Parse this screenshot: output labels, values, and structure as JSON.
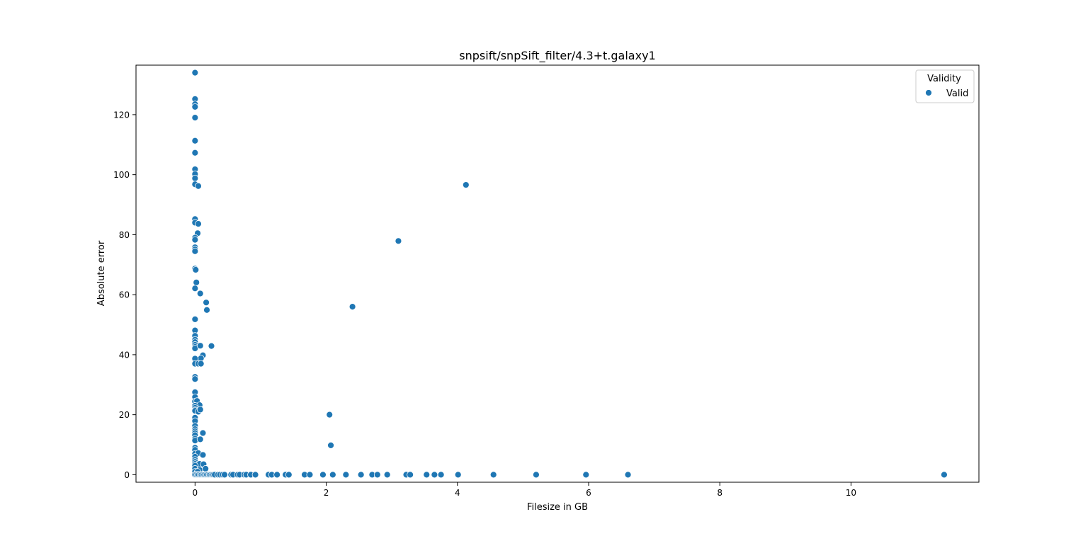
{
  "chart_data": {
    "type": "scatter",
    "title": "snpsift/snpSift_filter/4.3+t.galaxy1",
    "xlabel": "Filesize in GB",
    "ylabel": "Absolute error",
    "xlim": [
      -0.9,
      11.95
    ],
    "ylim": [
      -2.5,
      136.5
    ],
    "xticks": [
      0,
      2,
      4,
      6,
      8,
      10
    ],
    "yticks": [
      0,
      20,
      40,
      60,
      80,
      100,
      120
    ],
    "grid": false,
    "legend": {
      "title": "Validity",
      "placement": "top-right",
      "entries": [
        "Valid"
      ]
    },
    "series": [
      {
        "name": "Valid",
        "color": "#1f77b4",
        "points": [
          [
            0.0,
            134.0
          ],
          [
            0.0,
            125.2
          ],
          [
            0.0,
            123.5
          ],
          [
            0.0,
            122.6
          ],
          [
            0.0,
            119.0
          ],
          [
            0.0,
            111.3
          ],
          [
            0.0,
            107.3
          ],
          [
            0.0,
            101.8
          ],
          [
            0.0,
            100.2
          ],
          [
            0.0,
            98.8
          ],
          [
            0.0,
            96.8
          ],
          [
            0.05,
            96.2
          ],
          [
            0.0,
            85.2
          ],
          [
            0.0,
            84.0
          ],
          [
            0.05,
            83.6
          ],
          [
            0.04,
            80.5
          ],
          [
            0.0,
            79.0
          ],
          [
            0.0,
            78.3
          ],
          [
            0.0,
            75.8
          ],
          [
            0.0,
            75.1
          ],
          [
            0.0,
            74.5
          ],
          [
            0.0,
            68.7
          ],
          [
            0.01,
            68.3
          ],
          [
            0.02,
            64.1
          ],
          [
            0.0,
            62.1
          ],
          [
            0.08,
            60.4
          ],
          [
            0.17,
            57.4
          ],
          [
            0.18,
            54.9
          ],
          [
            0.0,
            51.8
          ],
          [
            0.0,
            48.1
          ],
          [
            0.0,
            46.3
          ],
          [
            0.0,
            45.0
          ],
          [
            0.0,
            44.2
          ],
          [
            0.0,
            43.3
          ],
          [
            0.0,
            42.6
          ],
          [
            0.0,
            42.1
          ],
          [
            0.08,
            43.0
          ],
          [
            0.25,
            42.9
          ],
          [
            0.12,
            39.8
          ],
          [
            0.09,
            38.8
          ],
          [
            0.0,
            38.7
          ],
          [
            0.0,
            37.0
          ],
          [
            0.05,
            37.0
          ],
          [
            0.09,
            37.0
          ],
          [
            0.0,
            32.6
          ],
          [
            0.0,
            31.9
          ],
          [
            0.0,
            27.5
          ],
          [
            0.0,
            25.9
          ],
          [
            0.0,
            24.4
          ],
          [
            0.03,
            24.6
          ],
          [
            0.07,
            23.2
          ],
          [
            0.0,
            23.0
          ],
          [
            0.0,
            22.3
          ],
          [
            0.0,
            21.6
          ],
          [
            0.0,
            21.3
          ],
          [
            0.05,
            21.0
          ],
          [
            0.08,
            21.7
          ],
          [
            0.0,
            19.0
          ],
          [
            0.0,
            17.9
          ],
          [
            0.0,
            16.3
          ],
          [
            0.0,
            15.2
          ],
          [
            0.0,
            14.5
          ],
          [
            0.0,
            13.9
          ],
          [
            0.0,
            13.2
          ],
          [
            0.12,
            13.9
          ],
          [
            0.0,
            12.0
          ],
          [
            0.0,
            11.4
          ],
          [
            0.08,
            11.8
          ],
          [
            0.0,
            9.0
          ],
          [
            0.0,
            8.3
          ],
          [
            0.0,
            7.0
          ],
          [
            0.05,
            7.2
          ],
          [
            0.12,
            6.6
          ],
          [
            0.0,
            6.0
          ],
          [
            0.0,
            5.0
          ],
          [
            0.0,
            4.3
          ],
          [
            0.0,
            3.6
          ],
          [
            0.07,
            3.6
          ],
          [
            0.13,
            3.5
          ],
          [
            0.0,
            3.0
          ],
          [
            0.0,
            2.0
          ],
          [
            0.07,
            1.6
          ],
          [
            0.16,
            2.0
          ],
          [
            0.0,
            1.0
          ],
          [
            0.04,
            1.0
          ],
          [
            0.0,
            0.0
          ],
          [
            0.02,
            0.0
          ],
          [
            0.04,
            0.0
          ],
          [
            0.06,
            0.0
          ],
          [
            0.08,
            0.0
          ],
          [
            0.1,
            0.0
          ],
          [
            0.12,
            0.0
          ],
          [
            0.14,
            0.0
          ],
          [
            0.16,
            0.0
          ],
          [
            0.18,
            0.0
          ],
          [
            0.2,
            0.0
          ],
          [
            0.22,
            0.0
          ],
          [
            0.24,
            0.0
          ],
          [
            0.26,
            0.0
          ],
          [
            0.28,
            0.0
          ],
          [
            0.3,
            0.0
          ],
          [
            0.35,
            0.0
          ],
          [
            0.38,
            0.0
          ],
          [
            0.42,
            0.0
          ],
          [
            0.45,
            0.0
          ],
          [
            0.55,
            0.0
          ],
          [
            0.58,
            0.0
          ],
          [
            0.65,
            0.0
          ],
          [
            0.68,
            0.0
          ],
          [
            0.75,
            0.0
          ],
          [
            0.78,
            0.0
          ],
          [
            0.85,
            0.0
          ],
          [
            0.92,
            0.0
          ],
          [
            1.12,
            0.0
          ],
          [
            1.17,
            0.0
          ],
          [
            1.25,
            0.0
          ],
          [
            1.38,
            0.0
          ],
          [
            1.43,
            0.0
          ],
          [
            1.67,
            0.0
          ],
          [
            1.75,
            0.0
          ],
          [
            1.95,
            0.0
          ],
          [
            2.1,
            0.0
          ],
          [
            2.3,
            0.0
          ],
          [
            2.53,
            0.0
          ],
          [
            2.7,
            0.0
          ],
          [
            2.78,
            0.0
          ],
          [
            2.93,
            0.0
          ],
          [
            3.22,
            0.0
          ],
          [
            3.28,
            0.0
          ],
          [
            3.53,
            0.0
          ],
          [
            3.65,
            0.0
          ],
          [
            3.75,
            0.0
          ],
          [
            4.01,
            0.0
          ],
          [
            4.55,
            0.0
          ],
          [
            5.2,
            0.0
          ],
          [
            5.96,
            0.0
          ],
          [
            6.6,
            0.0
          ],
          [
            11.42,
            0.0
          ],
          [
            2.05,
            20.0
          ],
          [
            2.07,
            9.8
          ],
          [
            2.4,
            56.0
          ],
          [
            3.1,
            77.9
          ],
          [
            4.13,
            96.6
          ]
        ]
      }
    ]
  }
}
